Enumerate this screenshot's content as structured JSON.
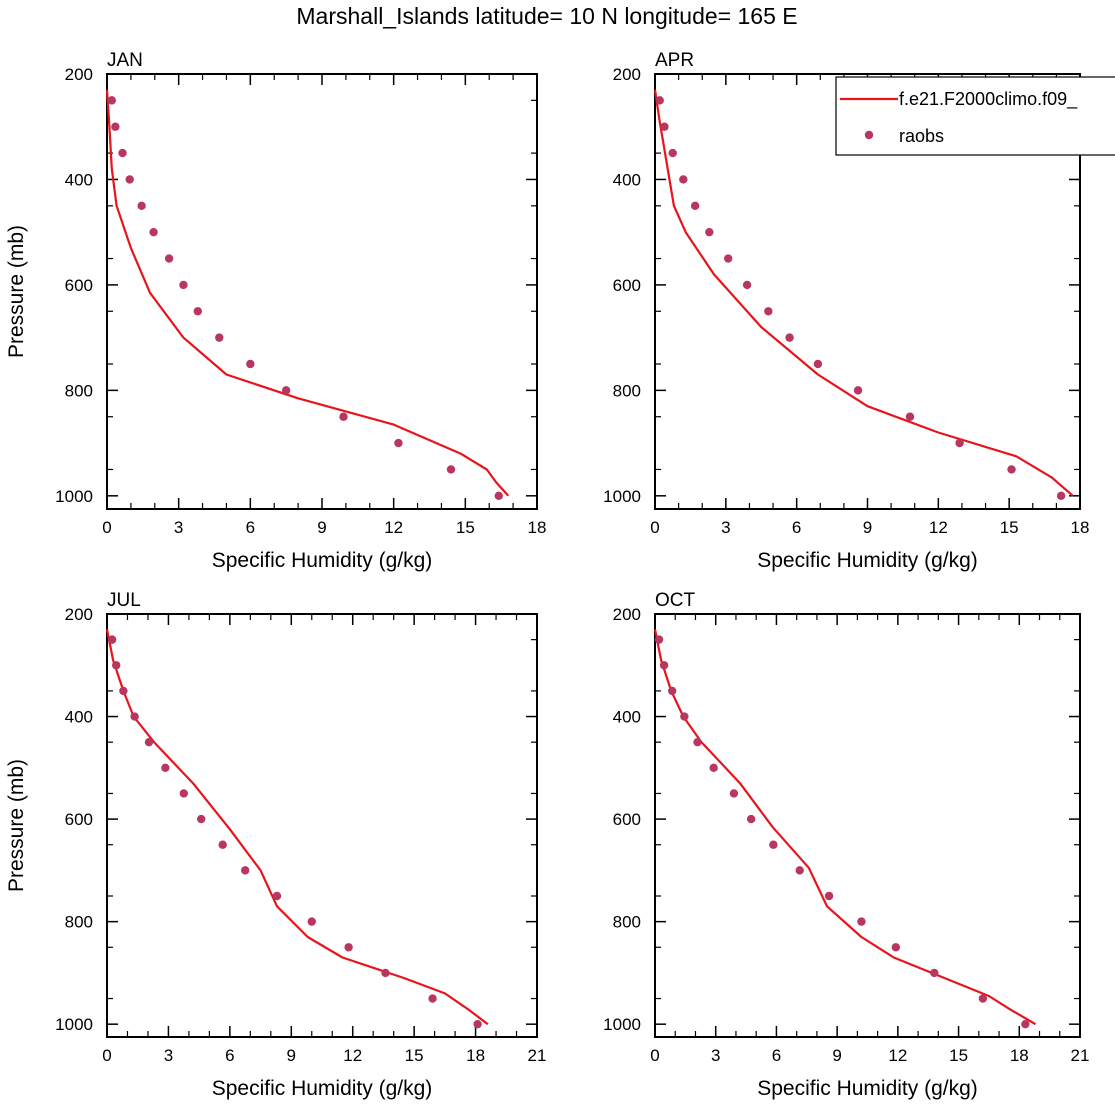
{
  "figure": {
    "title": "Marshall_Islands  latitude= 10 N longitude= 165 E"
  },
  "colors": {
    "model": "#e8141b",
    "obs": "#b8365f",
    "axis": "#000000"
  },
  "legend": {
    "placement": "top-right of APR panel",
    "entries": [
      {
        "label": "f.e21.F2000climo.f09_",
        "kind": "line",
        "color": "#e8141b"
      },
      {
        "label": "raobs",
        "kind": "marker",
        "color": "#b8365f"
      }
    ]
  },
  "chart_data": [
    {
      "type": "line",
      "panel_title": "JAN",
      "xlabel": "Specific Humidity (g/kg)",
      "ylabel": "Pressure (mb)",
      "xlim": [
        0,
        18
      ],
      "ylim": [
        1025,
        200
      ],
      "xticks": [
        0,
        3,
        6,
        9,
        12,
        15,
        18
      ],
      "yticks": [
        200,
        400,
        600,
        800,
        1000
      ],
      "series": [
        {
          "name": "f.e21.F2000climo.f09_",
          "style": "line",
          "x": [
            0.0,
            0.1,
            0.2,
            0.4,
            1.0,
            1.8,
            3.2,
            5.0,
            8.0,
            12.0,
            14.8,
            15.9,
            16.3,
            16.8
          ],
          "y": [
            230,
            300,
            380,
            450,
            530,
            615,
            700,
            770,
            815,
            865,
            920,
            950,
            975,
            1000
          ]
        },
        {
          "name": "raobs",
          "style": "marker",
          "x": [
            0.2,
            0.35,
            0.65,
            0.95,
            1.45,
            1.95,
            2.6,
            3.2,
            3.8,
            4.7,
            6.0,
            7.5,
            9.9,
            12.2,
            14.4,
            16.4
          ],
          "y": [
            250,
            300,
            350,
            400,
            450,
            500,
            550,
            600,
            650,
            700,
            750,
            800,
            850,
            900,
            950,
            1000
          ]
        }
      ]
    },
    {
      "type": "line",
      "panel_title": "APR",
      "xlabel": "Specific Humidity (g/kg)",
      "ylabel": "",
      "xlim": [
        0,
        18
      ],
      "ylim": [
        1025,
        200
      ],
      "xticks": [
        0,
        3,
        6,
        9,
        12,
        15,
        18
      ],
      "yticks": [
        200,
        400,
        600,
        800,
        1000
      ],
      "series": [
        {
          "name": "f.e21.F2000climo.f09_",
          "style": "line",
          "x": [
            0.0,
            0.2,
            0.5,
            0.8,
            1.3,
            2.5,
            4.5,
            6.9,
            9.0,
            12.0,
            15.3,
            16.8,
            17.7
          ],
          "y": [
            230,
            290,
            370,
            450,
            500,
            580,
            680,
            770,
            830,
            880,
            925,
            965,
            1000
          ]
        },
        {
          "name": "raobs",
          "style": "marker",
          "x": [
            0.2,
            0.4,
            0.75,
            1.2,
            1.7,
            2.3,
            3.1,
            3.9,
            4.8,
            5.7,
            6.9,
            8.6,
            10.8,
            12.9,
            15.1,
            17.2
          ],
          "y": [
            250,
            300,
            350,
            400,
            450,
            500,
            550,
            600,
            650,
            700,
            750,
            800,
            850,
            900,
            950,
            1000
          ]
        }
      ]
    },
    {
      "type": "line",
      "panel_title": "JUL",
      "xlabel": "Specific Humidity (g/kg)",
      "ylabel": "Pressure (mb)",
      "xlim": [
        0,
        21
      ],
      "ylim": [
        1025,
        200
      ],
      "xticks": [
        0,
        3,
        6,
        9,
        12,
        15,
        18,
        21
      ],
      "yticks": [
        200,
        400,
        600,
        800,
        1000
      ],
      "series": [
        {
          "name": "f.e21.F2000climo.f09_",
          "style": "line",
          "x": [
            0.0,
            0.3,
            0.8,
            1.3,
            2.3,
            4.2,
            6.0,
            7.5,
            8.3,
            9.8,
            11.5,
            14.5,
            16.5,
            17.6,
            18.6
          ],
          "y": [
            230,
            290,
            350,
            400,
            450,
            530,
            620,
            700,
            770,
            830,
            870,
            910,
            940,
            970,
            1000
          ]
        },
        {
          "name": "raobs",
          "style": "marker",
          "x": [
            0.25,
            0.45,
            0.8,
            1.35,
            2.05,
            2.85,
            3.75,
            4.6,
            5.65,
            6.75,
            8.3,
            10.0,
            11.8,
            13.6,
            15.9,
            18.1
          ],
          "y": [
            250,
            300,
            350,
            400,
            450,
            500,
            550,
            600,
            650,
            700,
            750,
            800,
            850,
            900,
            950,
            1000
          ]
        }
      ]
    },
    {
      "type": "line",
      "panel_title": "OCT",
      "xlabel": "Specific Humidity (g/kg)",
      "ylabel": "",
      "xlim": [
        0,
        21
      ],
      "ylim": [
        1025,
        200
      ],
      "xticks": [
        0,
        3,
        6,
        9,
        12,
        15,
        18,
        21
      ],
      "yticks": [
        200,
        400,
        600,
        800,
        1000
      ],
      "series": [
        {
          "name": "f.e21.F2000climo.f09_",
          "style": "line",
          "x": [
            0.0,
            0.3,
            0.8,
            1.4,
            2.3,
            4.2,
            5.8,
            7.6,
            8.5,
            10.2,
            11.8,
            14.3,
            16.5,
            17.5,
            18.8
          ],
          "y": [
            230,
            290,
            350,
            400,
            450,
            530,
            615,
            695,
            770,
            830,
            870,
            910,
            945,
            970,
            1000
          ]
        },
        {
          "name": "raobs",
          "style": "marker",
          "x": [
            0.2,
            0.45,
            0.85,
            1.45,
            2.1,
            2.9,
            3.9,
            4.75,
            5.85,
            7.15,
            8.6,
            10.2,
            11.9,
            13.8,
            16.2,
            18.3
          ],
          "y": [
            250,
            300,
            350,
            400,
            450,
            500,
            550,
            600,
            650,
            700,
            750,
            800,
            850,
            900,
            950,
            1000
          ]
        }
      ]
    }
  ]
}
